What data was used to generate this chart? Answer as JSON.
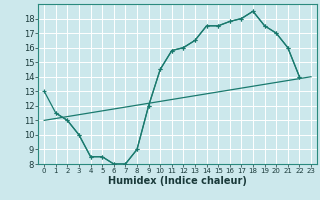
{
  "xlabel": "Humidex (Indice chaleur)",
  "bg_color": "#cce8ec",
  "grid_color": "#ffffff",
  "line_color": "#1a7a6e",
  "xlim": [
    -0.5,
    23.5
  ],
  "ylim": [
    8,
    19
  ],
  "xticks": [
    0,
    1,
    2,
    3,
    4,
    5,
    6,
    7,
    8,
    9,
    10,
    11,
    12,
    13,
    14,
    15,
    16,
    17,
    18,
    19,
    20,
    21,
    22,
    23
  ],
  "yticks": [
    8,
    9,
    10,
    11,
    12,
    13,
    14,
    15,
    16,
    17,
    18
  ],
  "line1_x": [
    0,
    1,
    2,
    3,
    4,
    5,
    6,
    7,
    8,
    9,
    10,
    11,
    12,
    13,
    14,
    15,
    16,
    17,
    18,
    19,
    20,
    21,
    22
  ],
  "line1_y": [
    13.0,
    11.5,
    11.0,
    10.0,
    8.5,
    8.5,
    8.0,
    8.0,
    9.0,
    12.0,
    14.5,
    15.8,
    16.0,
    16.5,
    17.5,
    17.5,
    17.8,
    18.0,
    18.5,
    17.5,
    17.0,
    16.0,
    14.0
  ],
  "line2_x": [
    0,
    23
  ],
  "line2_y": [
    11.0,
    14.0
  ],
  "line3_x": [
    1,
    2,
    3,
    4,
    5,
    6,
    7,
    8,
    9,
    10,
    11,
    12,
    13,
    14,
    15,
    16,
    17,
    18,
    19,
    20,
    21,
    22
  ],
  "line3_y": [
    11.5,
    11.0,
    10.0,
    8.5,
    8.5,
    8.0,
    8.0,
    9.0,
    12.0,
    14.5,
    15.8,
    16.0,
    16.5,
    17.5,
    17.5,
    17.8,
    18.0,
    18.5,
    17.5,
    17.0,
    16.0,
    14.0
  ]
}
